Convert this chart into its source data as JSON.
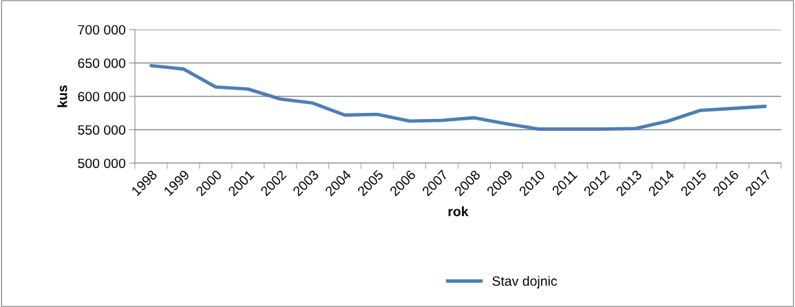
{
  "chart_data": {
    "type": "line",
    "xlabel": "rok",
    "ylabel": "kus",
    "categories": [
      "1998",
      "1999",
      "2000",
      "2001",
      "2002",
      "2003",
      "2004",
      "2005",
      "2006",
      "2007",
      "2008",
      "2009",
      "2010",
      "2011",
      "2012",
      "2013",
      "2014",
      "2015",
      "2016",
      "2017"
    ],
    "series": [
      {
        "name": "Stav dojnic",
        "color": "#4a7ebb",
        "values": [
          646000,
          641000,
          614000,
          611000,
          596000,
          590000,
          572000,
          573000,
          563000,
          564000,
          568000,
          559000,
          551000,
          551000,
          551000,
          552000,
          563000,
          579000,
          582000,
          585000
        ]
      }
    ],
    "ylim": [
      500000,
      700000
    ],
    "yticks": [
      {
        "value": 500000,
        "label": "500 000"
      },
      {
        "value": 550000,
        "label": "550 000"
      },
      {
        "value": 600000,
        "label": "600 000"
      },
      {
        "value": 650000,
        "label": "650 000"
      },
      {
        "value": 700000,
        "label": "700 000"
      }
    ],
    "grid": "y",
    "legend": "bottom",
    "marker": "none",
    "line_style": "solid"
  }
}
